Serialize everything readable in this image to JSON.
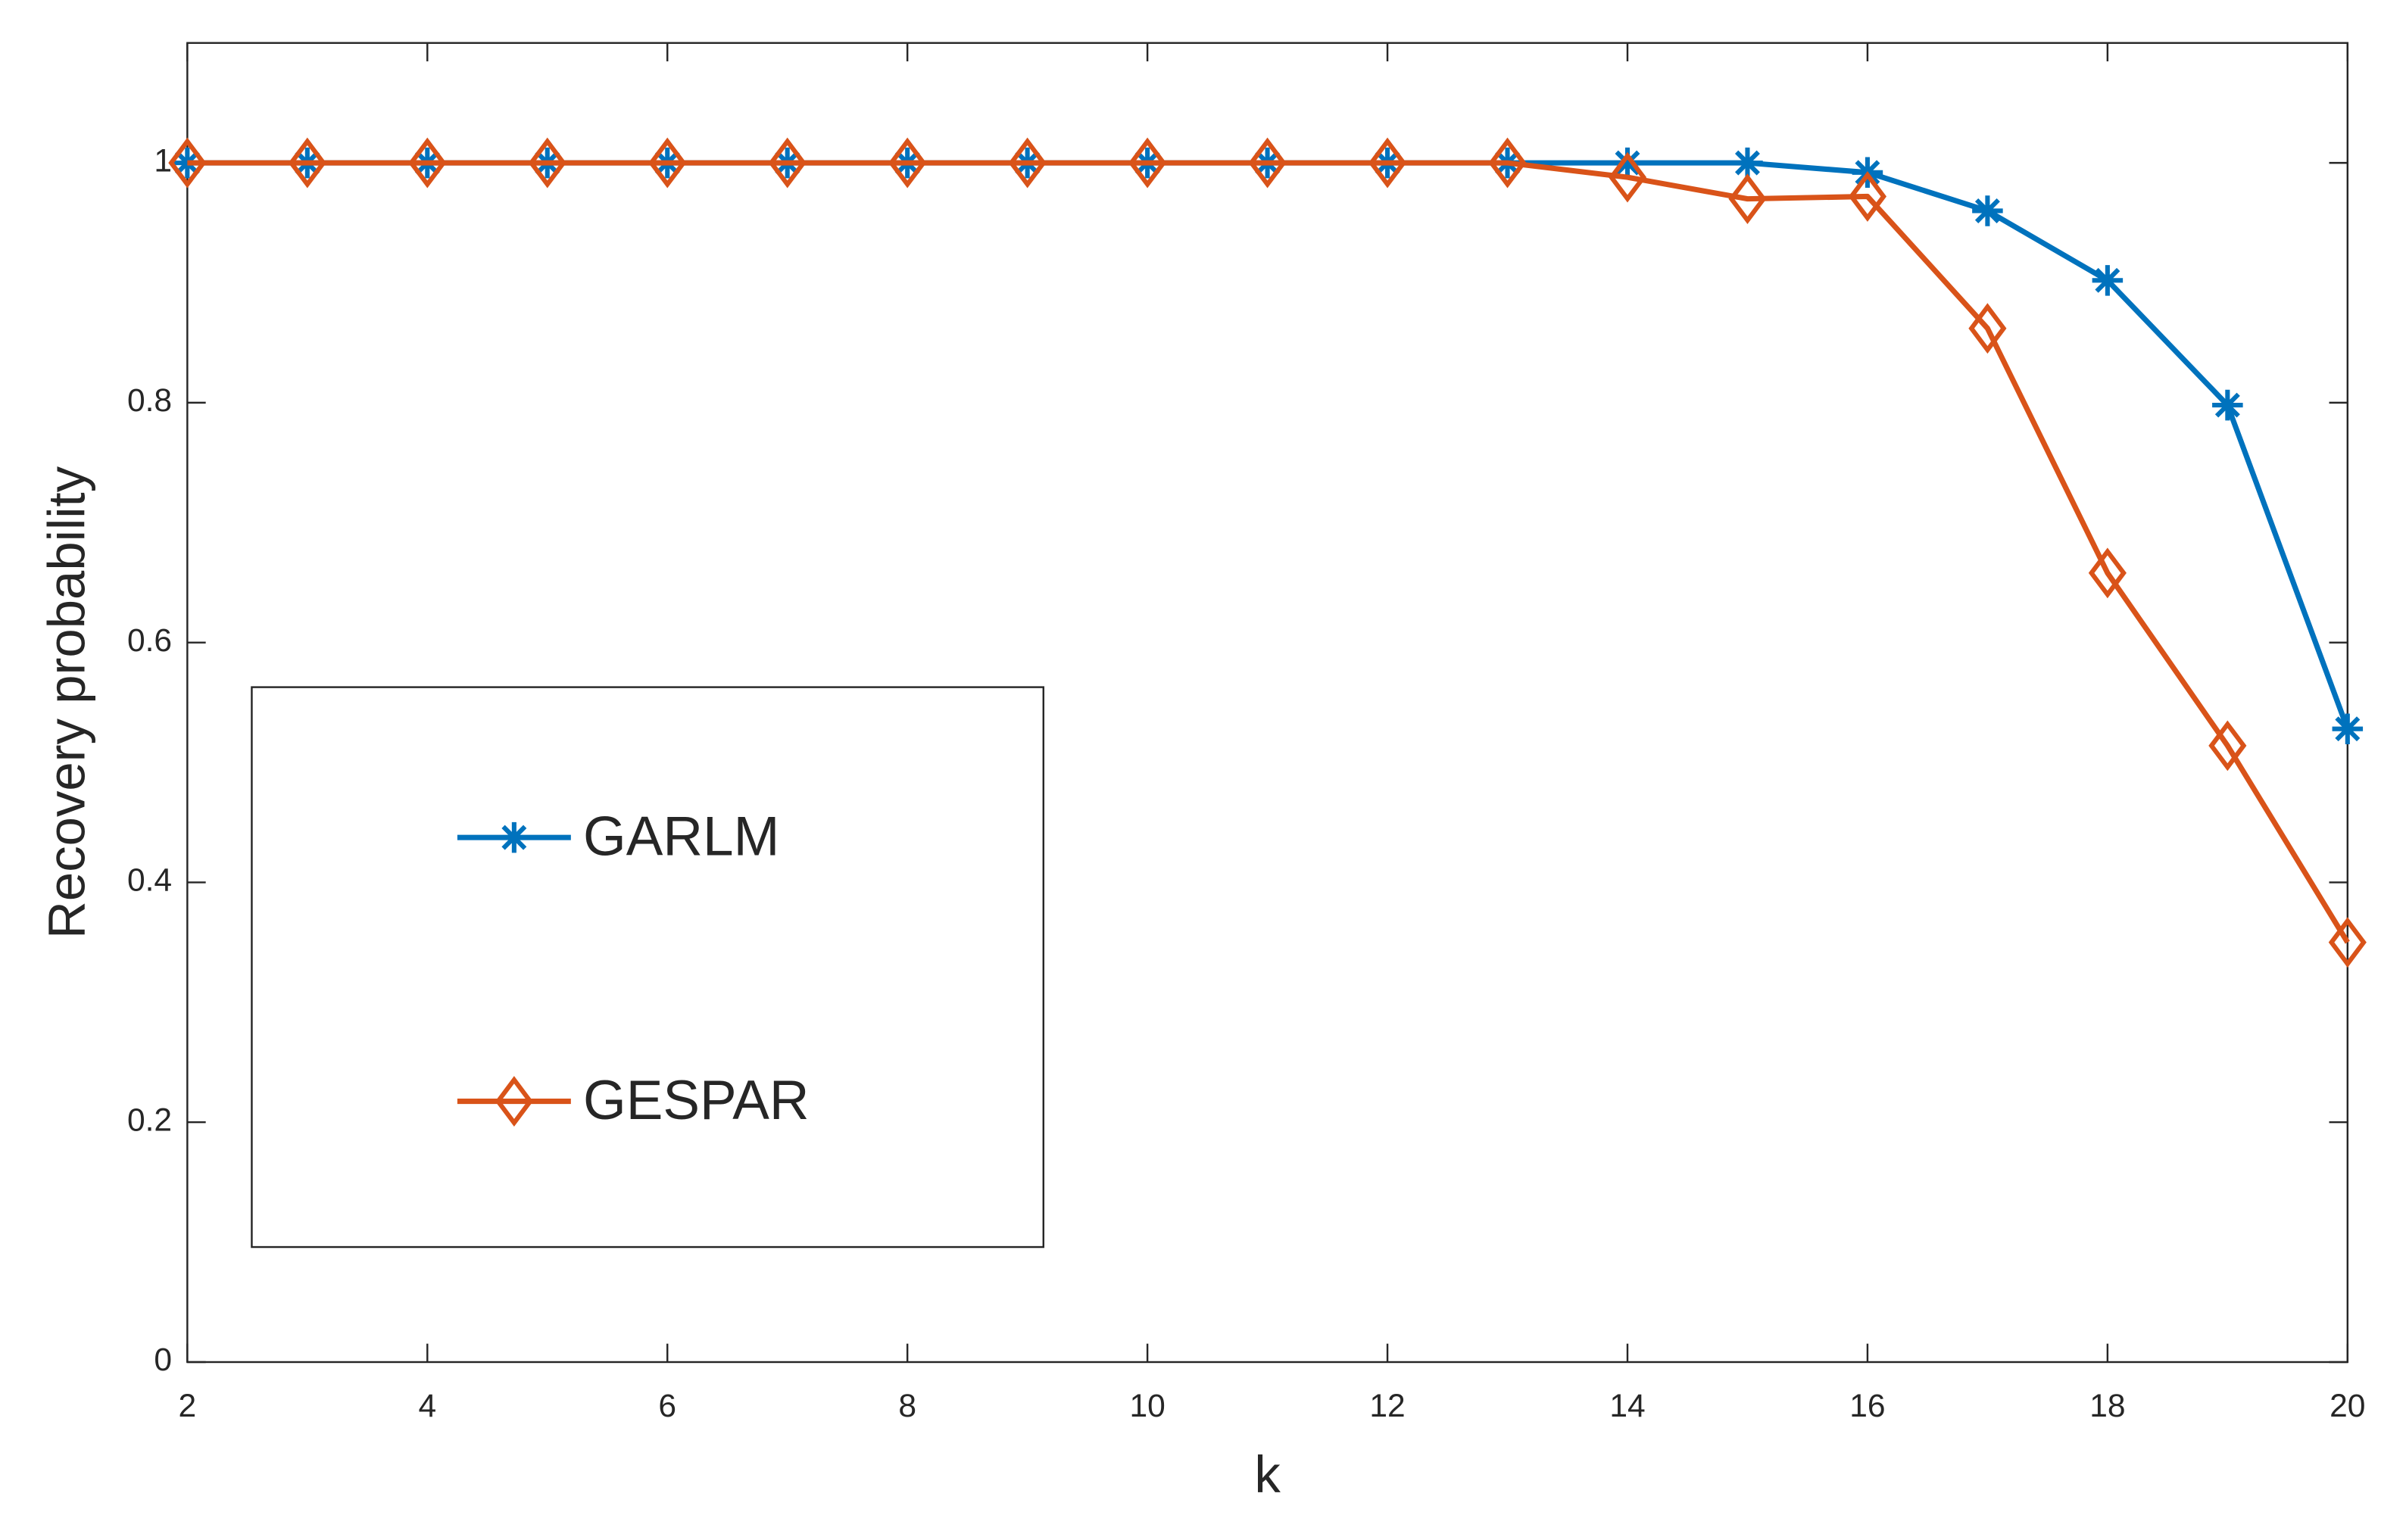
{
  "chart_data": {
    "type": "line",
    "x_label": "k",
    "y_label": "Recovery probability",
    "x": [
      2,
      3,
      4,
      5,
      6,
      7,
      8,
      9,
      10,
      11,
      12,
      13,
      14,
      15,
      16,
      17,
      18,
      19,
      20
    ],
    "series": [
      {
        "name": "GARLM",
        "color": "#0072bd",
        "marker": "asterisk",
        "values": [
          1,
          1,
          1,
          1,
          1,
          1,
          1,
          1,
          1,
          1,
          1,
          1,
          1,
          1,
          0.992,
          0.96,
          0.902,
          0.798,
          0.528
        ]
      },
      {
        "name": "GESPAR",
        "color": "#d95319",
        "marker": "diamond",
        "values": [
          1,
          1,
          1,
          1,
          1,
          1,
          1,
          1,
          1,
          1,
          1,
          1,
          0.988,
          0.97,
          0.972,
          0.862,
          0.658,
          0.514,
          0.35
        ]
      }
    ],
    "xlim": [
      2,
      20
    ],
    "xticks": [
      2,
      4,
      6,
      8,
      10,
      12,
      14,
      16,
      18,
      20
    ],
    "ylim": [
      0,
      1.1
    ],
    "yticks": [
      0,
      0.2,
      0.4,
      0.6,
      0.8,
      1
    ],
    "grid": false
  }
}
